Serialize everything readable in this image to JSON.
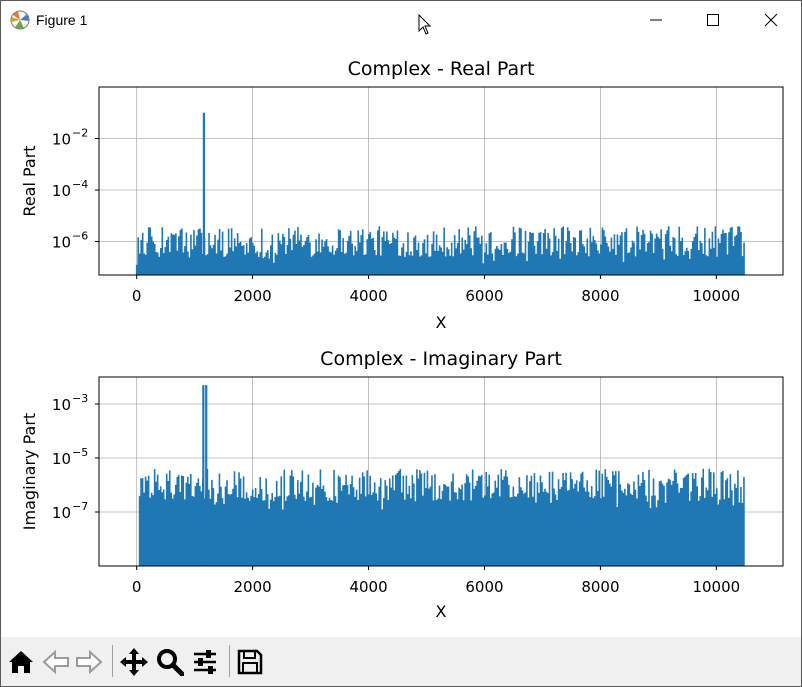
{
  "window": {
    "title": "Figure 1",
    "icons": [
      "matplotlib-icon",
      "minimize-icon",
      "maximize-icon",
      "close-icon"
    ]
  },
  "toolbar": {
    "items": [
      "home-icon",
      "back-icon",
      "forward-icon",
      "pan-icon",
      "zoom-icon",
      "configure-subplots-icon",
      "save-icon"
    ]
  },
  "colors": {
    "series": "#1f77b4",
    "grid": "#b0b0b0",
    "toolbar_bg": "#f0f0f0"
  },
  "chart_data": [
    {
      "type": "line",
      "title": "Complex - Real Part",
      "xlabel": "X",
      "ylabel": "Real Part",
      "yscale": "log",
      "xlim": [
        -650,
        11150
      ],
      "ylim": [
        5e-08,
        1
      ],
      "xticks": [
        0,
        2000,
        4000,
        6000,
        8000,
        10000
      ],
      "xtick_labels": [
        "0",
        "2000",
        "4000",
        "6000",
        "8000",
        "10000"
      ],
      "yticks": [
        1e-06,
        0.0001,
        0.01
      ],
      "ytick_labels": [
        {
          "base": "10",
          "exp": "−6"
        },
        {
          "base": "10",
          "exp": "−4"
        },
        {
          "base": "10",
          "exp": "−2"
        }
      ],
      "grid": true,
      "x_range": [
        0,
        10500
      ],
      "spikes": [
        {
          "x": 1160,
          "y": 0.1
        }
      ],
      "note_series": "dense signal; floor near 1e-7, bursts mostly 3e-7 to 3e-6"
    },
    {
      "type": "line",
      "title": "Complex - Imaginary Part",
      "xlabel": "X",
      "ylabel": "Imaginary Part",
      "yscale": "log",
      "xlim": [
        -650,
        11150
      ],
      "ylim": [
        1e-09,
        0.01
      ],
      "xticks": [
        0,
        2000,
        4000,
        6000,
        8000,
        10000
      ],
      "xtick_labels": [
        "0",
        "2000",
        "4000",
        "6000",
        "8000",
        "10000"
      ],
      "yticks": [
        1e-07,
        1e-05,
        0.001
      ],
      "ytick_labels": [
        {
          "base": "10",
          "exp": "−7"
        },
        {
          "base": "10",
          "exp": "−5"
        },
        {
          "base": "10",
          "exp": "−3"
        }
      ],
      "grid": true,
      "x_range": [
        50,
        10500
      ],
      "spikes": [
        {
          "x": 1150,
          "y": 0.005
        },
        {
          "x": 1200,
          "y": 0.005
        }
      ],
      "note_series": "dense signal; floor near 1e-9, bursts mostly 3e-7 to 3e-6"
    }
  ]
}
